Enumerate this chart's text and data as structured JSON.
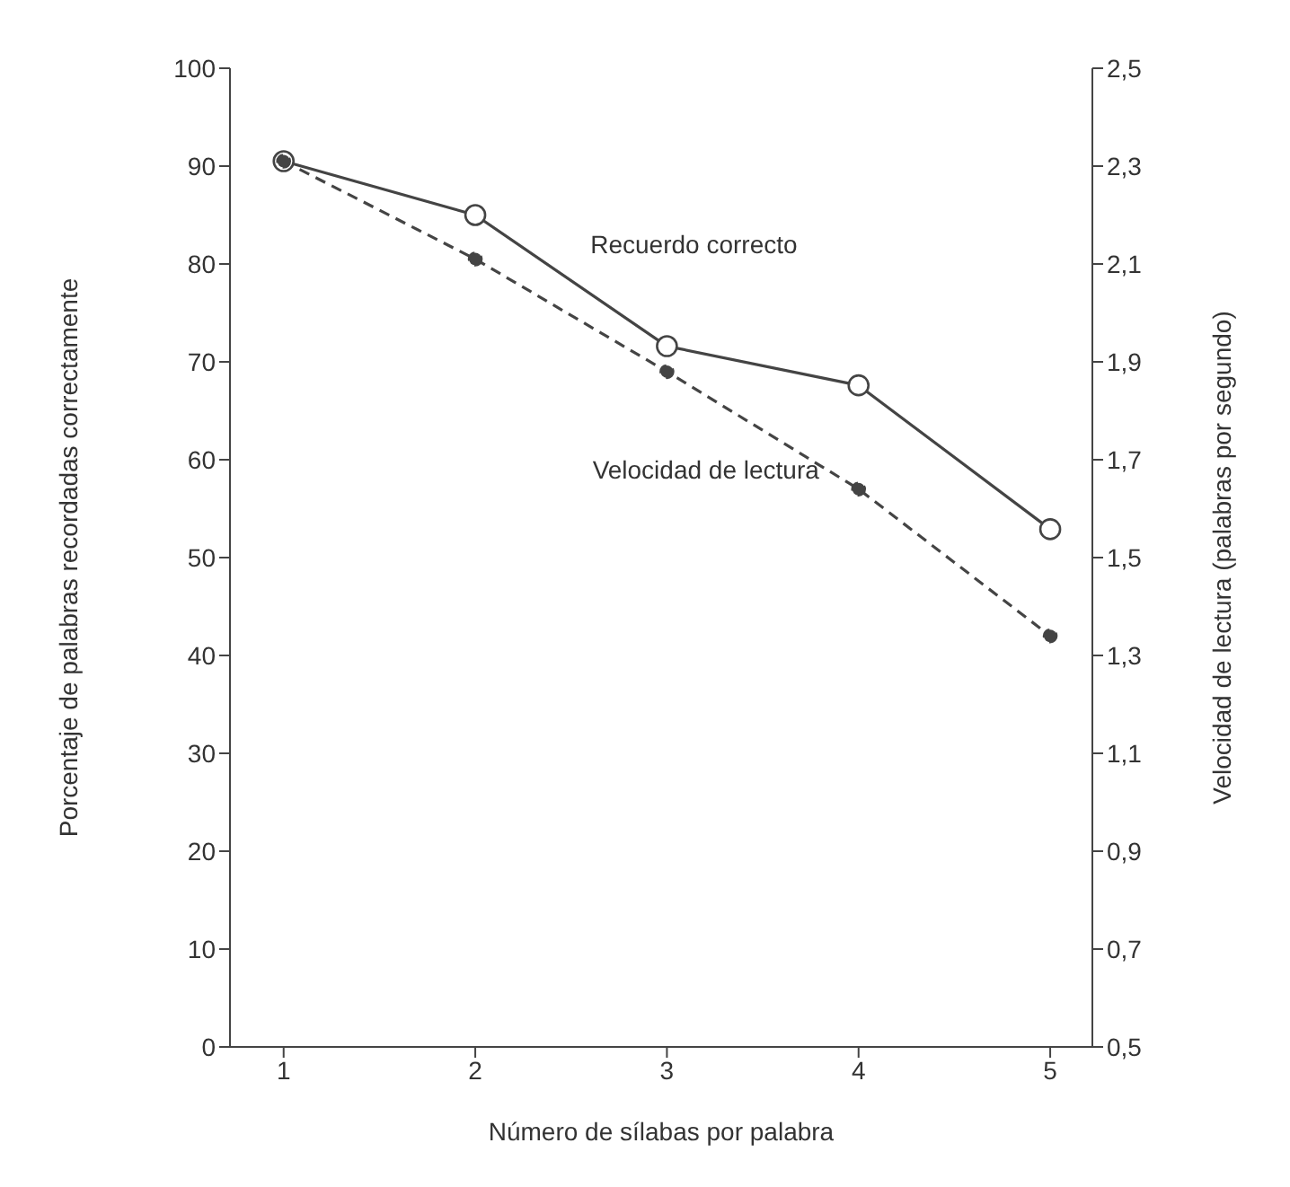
{
  "chart_data": {
    "type": "line",
    "xlabel": "Número de sílabas por palabra",
    "ylabel": "Porcentaje de palabras recordadas correctamente",
    "y2label": "Velocidad de lectura (palabras por segundo)",
    "x": [
      1,
      2,
      3,
      4,
      5
    ],
    "xlim": [
      0.72,
      5.22
    ],
    "xticks": [
      1,
      2,
      3,
      4,
      5
    ],
    "ylim": [
      0,
      100
    ],
    "yticks": [
      0,
      10,
      20,
      30,
      40,
      50,
      60,
      70,
      80,
      90,
      100
    ],
    "y2lim": [
      0.5,
      2.5
    ],
    "y2ticks": [
      {
        "value": 0.5,
        "label": "0,5"
      },
      {
        "value": 0.7,
        "label": "0,7"
      },
      {
        "value": 0.9,
        "label": "0,9"
      },
      {
        "value": 1.1,
        "label": "1,1"
      },
      {
        "value": 1.3,
        "label": "1,3"
      },
      {
        "value": 1.5,
        "label": "1,5"
      },
      {
        "value": 1.7,
        "label": "1,7"
      },
      {
        "value": 1.9,
        "label": "1,9"
      },
      {
        "value": 2.1,
        "label": "2,1"
      },
      {
        "value": 2.3,
        "label": "2,3"
      },
      {
        "value": 2.5,
        "label": "2,5"
      }
    ],
    "grid": false,
    "legend": false,
    "marker": "circle",
    "series": [
      {
        "name": "Recuerdo correcto",
        "color": "#444444",
        "line_style": "solid",
        "values": [
          90.5,
          85.0,
          71.6,
          67.6,
          52.9
        ]
      },
      {
        "name": "Velocidad de lectura",
        "color": "#444444",
        "line_style": "dashed",
        "axis": "y2",
        "values": [
          2.31,
          2.11,
          1.88,
          1.64,
          1.34
        ]
      }
    ]
  }
}
